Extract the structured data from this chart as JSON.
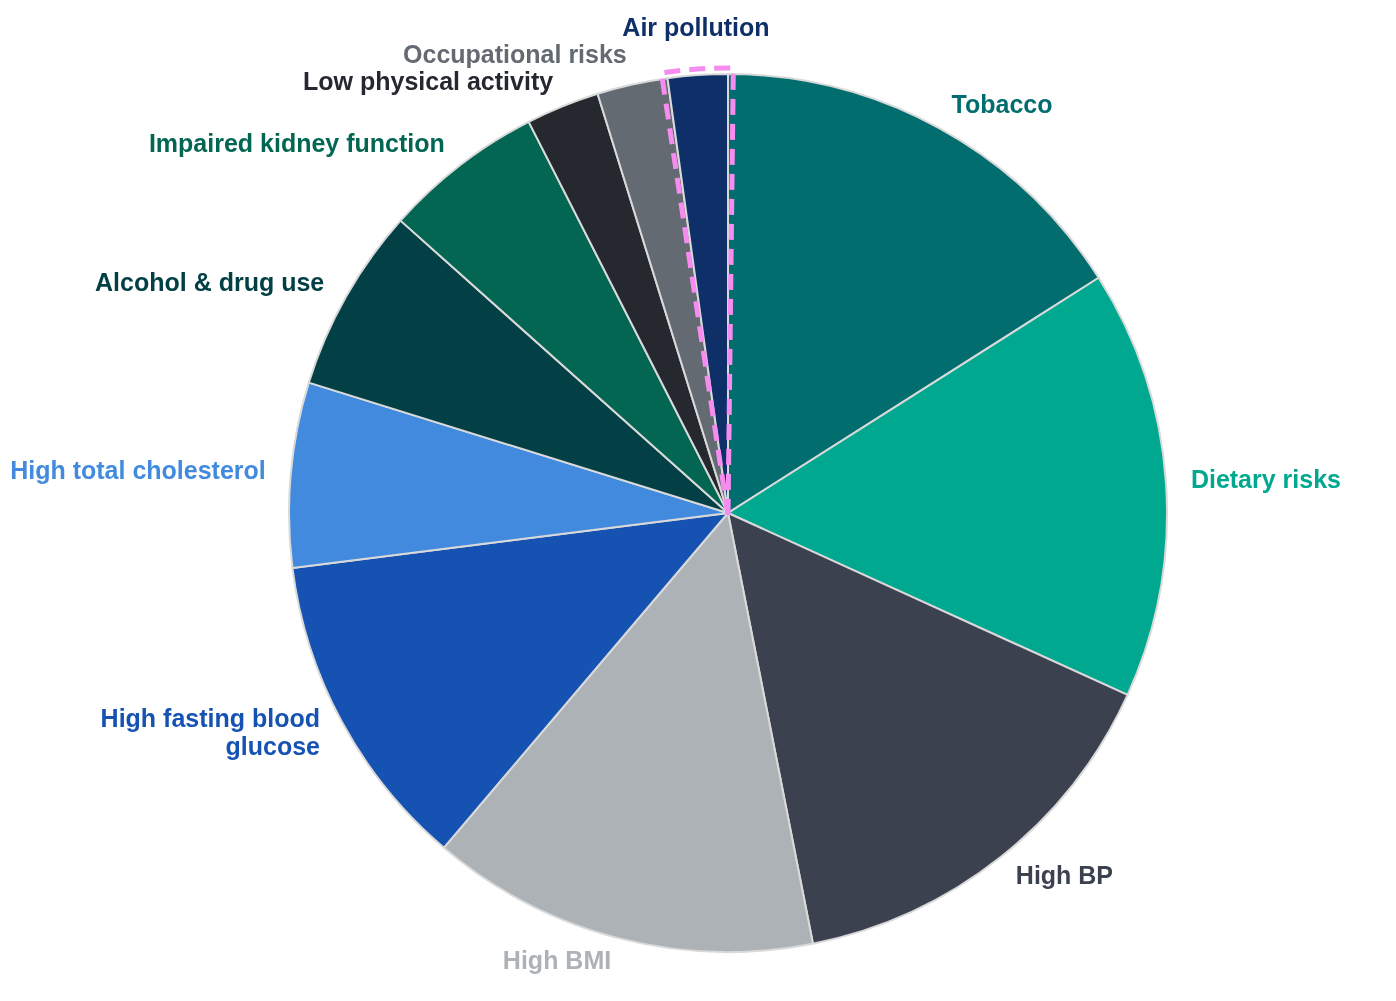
{
  "chart_data": {
    "type": "pie",
    "categories": [
      "Tobacco",
      "Dietary risks",
      "High BP",
      "High BMI",
      "High fasting blood glucose",
      "High total cholesterol",
      "Alcohol & drug use",
      "Impaired kidney function",
      "Low physical activity",
      "Occupational risks",
      "Air pollution"
    ],
    "values": [
      16.0,
      15.8,
      15.1,
      14.3,
      11.8,
      6.8,
      6.8,
      5.9,
      2.7,
      2.6,
      2.2
    ],
    "colors": [
      "#026d6f",
      "#00a88f",
      "#3c4150",
      "#adb2b7",
      "#1652b2",
      "#418ade",
      "#024046",
      "#026652",
      "#262830",
      "#636a72",
      "#0e2f68"
    ],
    "legend": false
  }
}
